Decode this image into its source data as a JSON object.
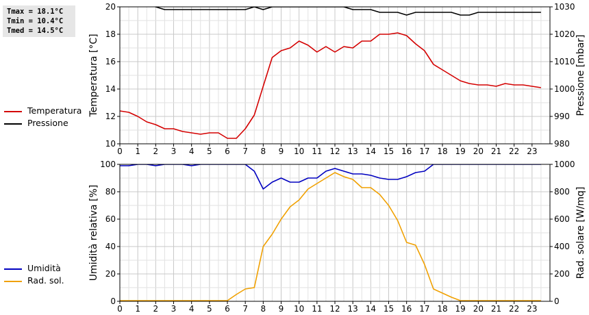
{
  "stats": {
    "tmax": "Tmax = 18.1°C",
    "tmin": "Tmin = 10.4°C",
    "tmed": "Tmed = 14.5°C"
  },
  "legend_top": [
    {
      "label": "Temperatura",
      "color": "#d40000"
    },
    {
      "label": "Pressione",
      "color": "#000000"
    }
  ],
  "legend_bottom": [
    {
      "label": "Umidità",
      "color": "#0000c0"
    },
    {
      "label": "Rad. sol.",
      "color": "#f0a000"
    }
  ],
  "chart_data": [
    {
      "type": "line",
      "xlim": [
        0,
        24
      ],
      "x_ticks": [
        "0",
        "1",
        "2",
        "3",
        "4",
        "5",
        "6",
        "7",
        "8",
        "9",
        "10",
        "11",
        "12",
        "13",
        "14",
        "15",
        "16",
        "17",
        "18",
        "19",
        "20",
        "21",
        "22",
        "23"
      ],
      "ylabel": "Temperatura [°C]",
      "ylim": [
        10,
        20
      ],
      "y_ticks": [
        "10",
        "12",
        "14",
        "16",
        "18",
        "20"
      ],
      "y2label": "Pressione [mbar]",
      "y2lim": [
        980,
        1030
      ],
      "y2_ticks": [
        "980",
        "990",
        "1000",
        "1010",
        "1020",
        "1030"
      ],
      "grid": true,
      "series": [
        {
          "name": "Temperatura",
          "axis": "left",
          "color": "#d40000",
          "x": [
            0,
            0.5,
            1,
            1.5,
            2,
            2.5,
            3,
            3.5,
            4,
            4.5,
            5,
            5.5,
            6,
            6.5,
            7,
            7.5,
            8,
            8.5,
            9,
            9.5,
            10,
            10.5,
            11,
            11.5,
            12,
            12.5,
            13,
            13.5,
            14,
            14.5,
            15,
            15.5,
            16,
            16.5,
            17,
            17.5,
            18,
            18.5,
            19,
            19.5,
            20,
            20.5,
            21,
            21.5,
            22,
            22.5,
            23,
            23.5
          ],
          "values": [
            12.4,
            12.3,
            12.0,
            11.6,
            11.4,
            11.1,
            11.1,
            10.9,
            10.8,
            10.7,
            10.8,
            10.8,
            10.4,
            10.4,
            11.1,
            12.1,
            14.2,
            16.3,
            16.8,
            17.0,
            17.5,
            17.2,
            16.7,
            17.1,
            16.7,
            17.1,
            17.0,
            17.5,
            17.5,
            18.0,
            18.0,
            18.1,
            17.9,
            17.3,
            16.8,
            15.8,
            15.4,
            15.0,
            14.6,
            14.4,
            14.3,
            14.3,
            14.2,
            14.4,
            14.3,
            14.3,
            14.2,
            14.1
          ]
        },
        {
          "name": "Pressione",
          "axis": "right",
          "color": "#000000",
          "x": [
            0,
            0.5,
            1,
            1.5,
            2,
            2.5,
            3,
            3.5,
            4,
            4.5,
            5,
            5.5,
            6,
            6.5,
            7,
            7.5,
            8,
            8.5,
            9,
            9.5,
            10,
            10.5,
            11,
            11.5,
            12,
            12.5,
            13,
            13.5,
            14,
            14.5,
            15,
            15.5,
            16,
            16.5,
            17,
            17.5,
            18,
            18.5,
            19,
            19.5,
            20,
            20.5,
            21,
            21.5,
            22,
            22.5,
            23,
            23.5
          ],
          "values": [
            1031,
            1031,
            1031,
            1031,
            1030,
            1029,
            1029,
            1029,
            1029,
            1029,
            1029,
            1029,
            1029,
            1029,
            1029,
            1030,
            1029,
            1030,
            1030,
            1030,
            1030,
            1030,
            1030,
            1030,
            1030,
            1030,
            1029,
            1029,
            1029,
            1028,
            1028,
            1028,
            1027,
            1028,
            1028,
            1028,
            1028,
            1028,
            1027,
            1027,
            1028,
            1028,
            1028,
            1028,
            1028,
            1028,
            1028,
            1028
          ]
        }
      ]
    },
    {
      "type": "line",
      "xlim": [
        0,
        24
      ],
      "x_ticks": [
        "0",
        "1",
        "2",
        "3",
        "4",
        "5",
        "6",
        "7",
        "8",
        "9",
        "10",
        "11",
        "12",
        "13",
        "14",
        "15",
        "16",
        "17",
        "18",
        "19",
        "20",
        "21",
        "22",
        "23"
      ],
      "ylabel": "Umidità relativa [%]",
      "ylim": [
        0,
        100
      ],
      "y_ticks": [
        "0",
        "20",
        "40",
        "60",
        "80",
        "100"
      ],
      "y2label": "Rad. solare [W/mq]",
      "y2lim": [
        0,
        1000
      ],
      "y2_ticks": [
        "0",
        "200",
        "400",
        "600",
        "800",
        "1000"
      ],
      "grid": true,
      "series": [
        {
          "name": "Umidità",
          "axis": "left",
          "color": "#0000c0",
          "x": [
            0,
            0.5,
            1,
            1.5,
            2,
            2.5,
            3,
            3.5,
            4,
            4.5,
            5,
            5.5,
            6,
            6.5,
            7,
            7.5,
            8,
            8.5,
            9,
            9.5,
            10,
            10.5,
            11,
            11.5,
            12,
            12.5,
            13,
            13.5,
            14,
            14.5,
            15,
            15.5,
            16,
            16.5,
            17,
            17.5,
            18,
            18.5,
            19,
            19.5,
            20,
            20.5,
            21,
            21.5,
            22,
            22.5,
            23,
            23.5
          ],
          "values": [
            99,
            99,
            100,
            100,
            99,
            100,
            100,
            100,
            99,
            100,
            100,
            100,
            100,
            100,
            100,
            95,
            82,
            87,
            90,
            87,
            87,
            90,
            90,
            95,
            97,
            95,
            93,
            93,
            92,
            90,
            89,
            89,
            91,
            94,
            95,
            100,
            100,
            100,
            100,
            100,
            100,
            100,
            100,
            100,
            100,
            100,
            100,
            100
          ]
        },
        {
          "name": "Rad. sol.",
          "axis": "right",
          "color": "#f0a000",
          "x": [
            0,
            0.5,
            1,
            1.5,
            2,
            2.5,
            3,
            3.5,
            4,
            4.5,
            5,
            5.5,
            6,
            6.5,
            7,
            7.5,
            8,
            8.5,
            9,
            9.5,
            10,
            10.5,
            11,
            11.5,
            12,
            12.5,
            13,
            13.5,
            14,
            14.5,
            15,
            15.5,
            16,
            16.5,
            17,
            17.5,
            18,
            18.5,
            19,
            19.5,
            20,
            20.5,
            21,
            21.5,
            22,
            22.5,
            23,
            23.5
          ],
          "values": [
            5,
            5,
            5,
            5,
            5,
            5,
            5,
            5,
            5,
            5,
            5,
            5,
            5,
            50,
            90,
            100,
            400,
            490,
            600,
            690,
            740,
            820,
            860,
            900,
            940,
            910,
            890,
            830,
            830,
            780,
            700,
            590,
            430,
            410,
            270,
            90,
            60,
            30,
            5,
            5,
            5,
            5,
            5,
            5,
            5,
            5,
            5,
            5
          ]
        }
      ]
    }
  ]
}
